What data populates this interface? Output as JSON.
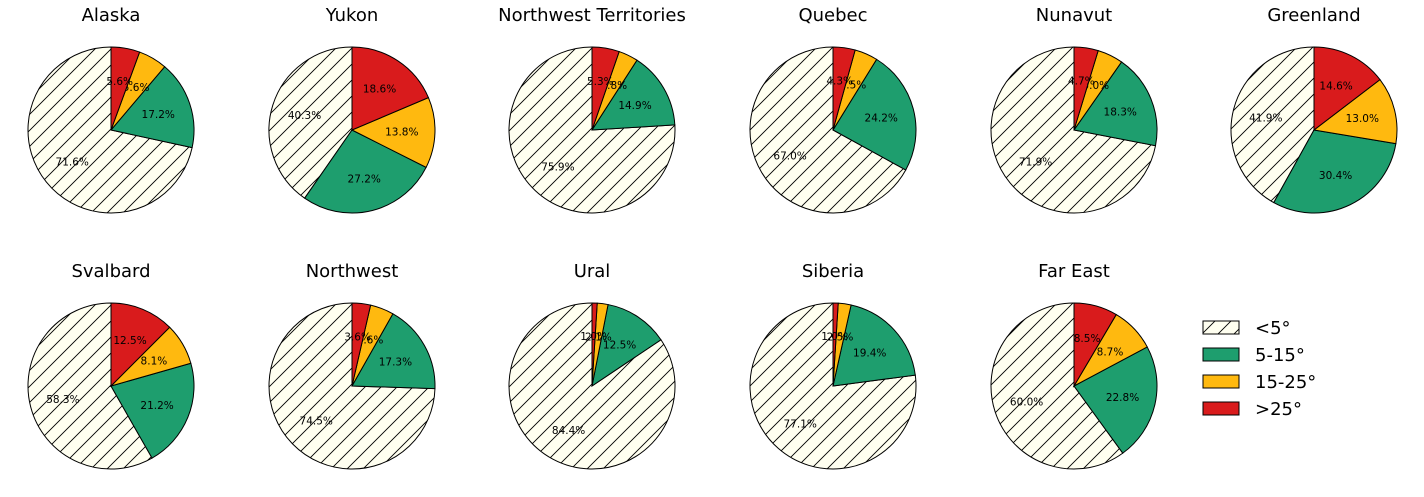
{
  "chart_data": {
    "type": "pie",
    "legend": {
      "placement": "bottom-right",
      "entries": [
        "<5°",
        "5-15°",
        "15-25°",
        ">25°"
      ]
    },
    "categories": [
      "<5°",
      "5-15°",
      "15-25°",
      ">25°"
    ],
    "colors": [
      "#fffff0",
      "#1e9e6e",
      "#ffb90f",
      "#d91b1c"
    ],
    "hatch": [
      true,
      false,
      false,
      false
    ],
    "charts": [
      {
        "title": "Alaska",
        "values": [
          71.6,
          17.2,
          5.6,
          5.6
        ],
        "labels": [
          "71.6%",
          "17.2%",
          "5.6%",
          "5.6%"
        ]
      },
      {
        "title": "Yukon",
        "values": [
          40.3,
          27.2,
          13.8,
          18.6
        ],
        "labels": [
          "40.3%",
          "27.2%",
          "13.8%",
          "18.6%"
        ]
      },
      {
        "title": "Northwest Territories",
        "values": [
          75.9,
          14.9,
          3.8,
          5.3
        ],
        "labels": [
          "75.9%",
          "14.9%",
          "3.8%",
          "5.3%"
        ]
      },
      {
        "title": "Quebec",
        "values": [
          67.0,
          24.2,
          4.5,
          4.3
        ],
        "labels": [
          "67.0%",
          "24.2%",
          "4.5%",
          "4.3%"
        ]
      },
      {
        "title": "Nunavut",
        "values": [
          71.9,
          18.3,
          5.0,
          4.7
        ],
        "labels": [
          "71.9%",
          "18.3%",
          "5.0%",
          "4.7%"
        ]
      },
      {
        "title": "Greenland",
        "values": [
          41.9,
          30.4,
          13.0,
          14.6
        ],
        "labels": [
          "41.9%",
          "30.4%",
          "13.0%",
          "14.6%"
        ]
      },
      {
        "title": "Svalbard",
        "values": [
          58.3,
          21.2,
          8.1,
          12.5
        ],
        "labels": [
          "58.3%",
          "21.2%",
          "8.1%",
          "12.5%"
        ]
      },
      {
        "title": "Northwest",
        "values": [
          74.5,
          17.3,
          4.6,
          3.6
        ],
        "labels": [
          "74.5%",
          "17.3%",
          "4.6%",
          "3.6%"
        ]
      },
      {
        "title": "Ural",
        "values": [
          84.4,
          12.5,
          2.1,
          1.0
        ],
        "labels": [
          "84.4%",
          "12.5%",
          "2.1%",
          "1.0%"
        ]
      },
      {
        "title": "Siberia",
        "values": [
          77.1,
          19.4,
          2.5,
          1.0
        ],
        "labels": [
          "77.1%",
          "19.4%",
          "2.5%",
          "1.0%"
        ]
      },
      {
        "title": "Far East",
        "values": [
          60.0,
          22.8,
          8.7,
          8.5
        ],
        "labels": [
          "60.0%",
          "22.8%",
          "8.7%",
          "8.5%"
        ]
      }
    ]
  }
}
